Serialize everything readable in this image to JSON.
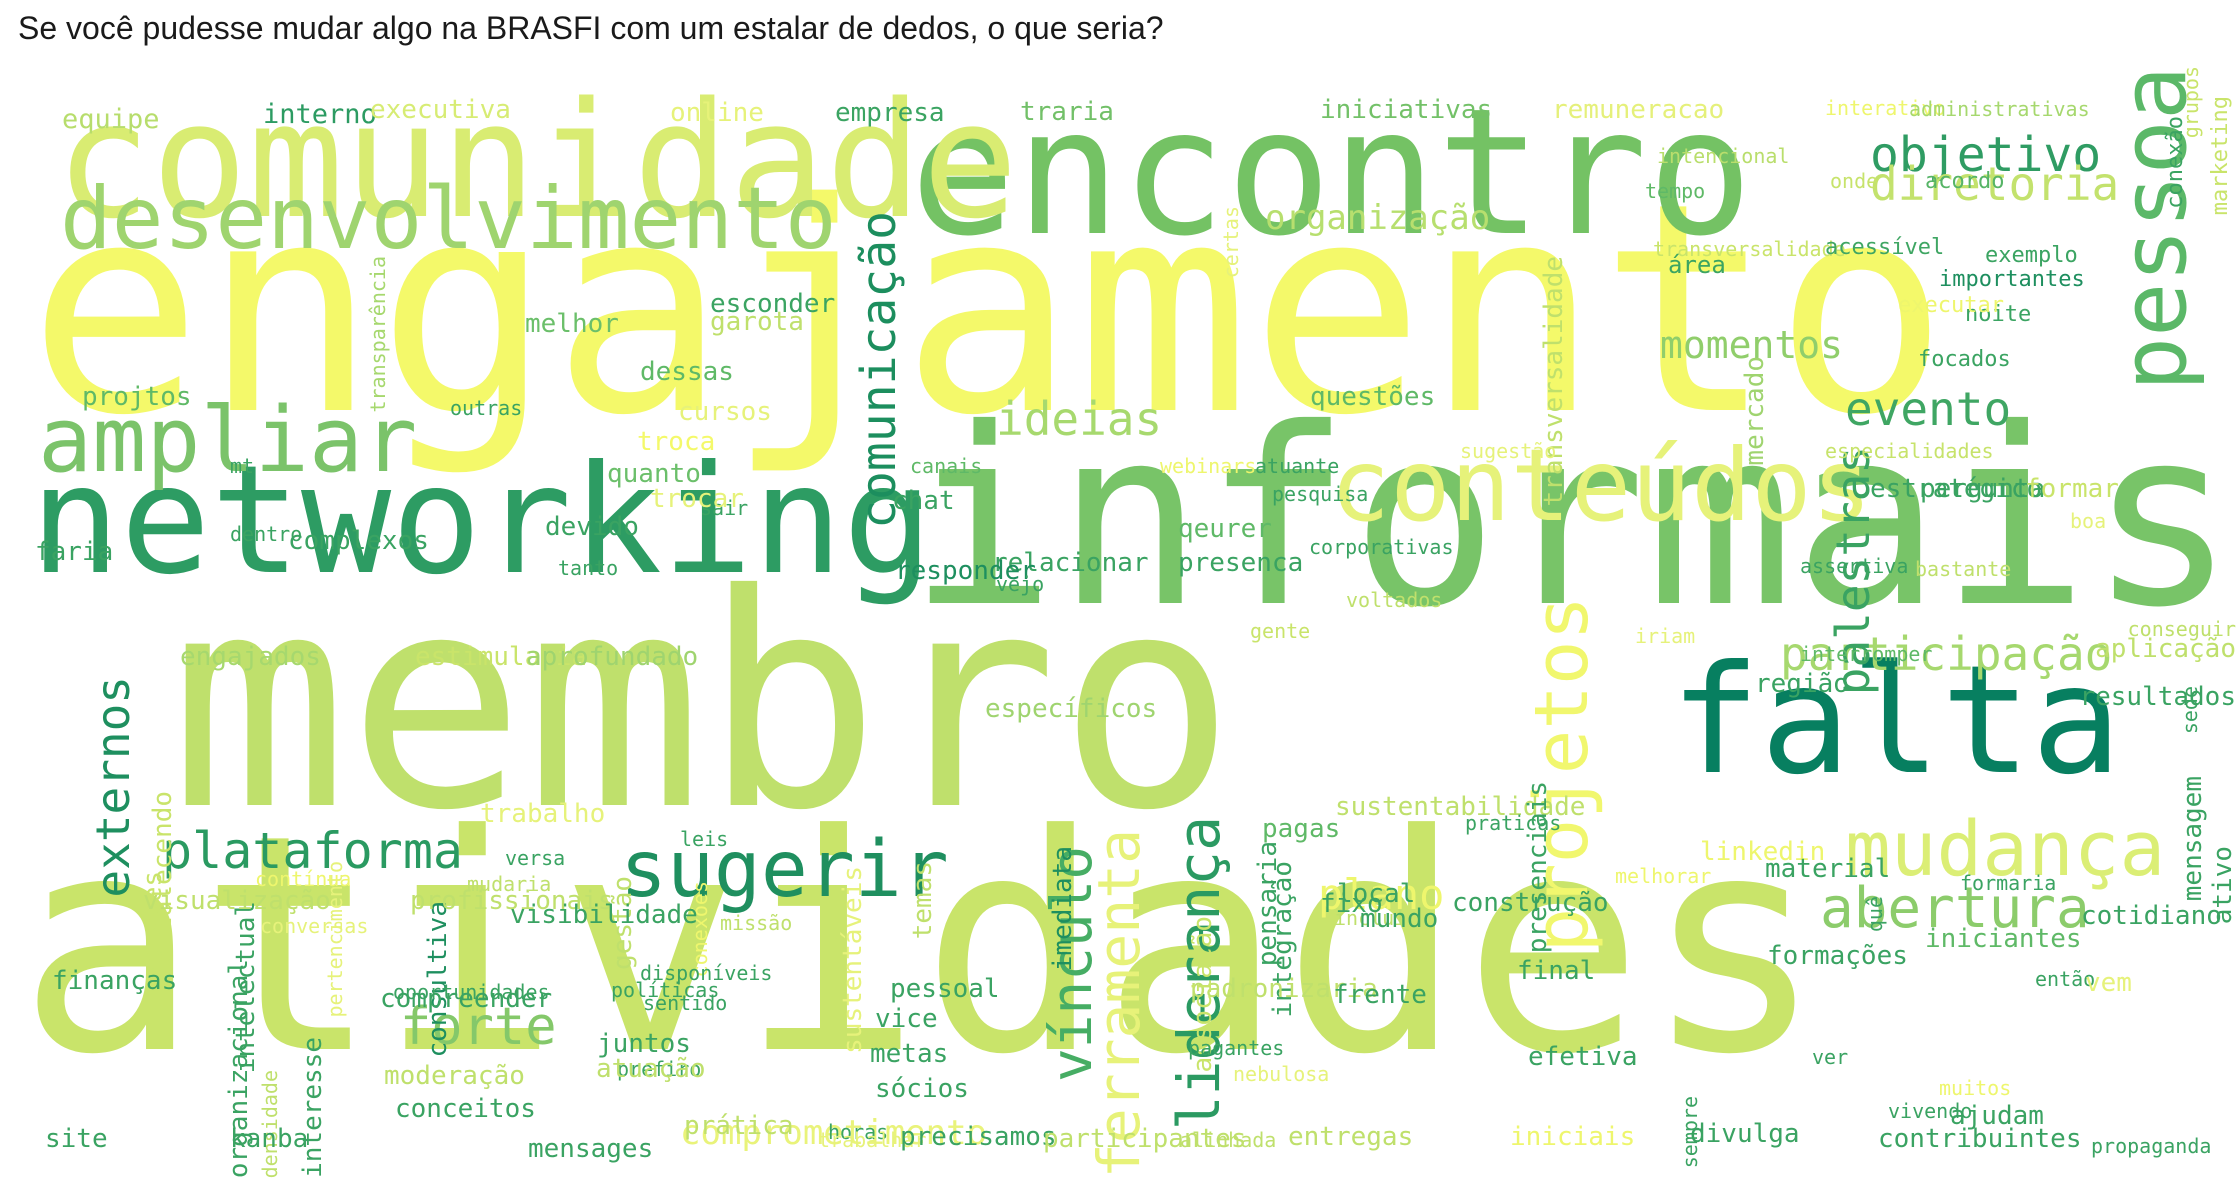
{
  "title": "Se você pudesse mudar algo na BRASFI com um estalar de dedos, o que seria?",
  "palette": {
    "bg": "#ffffff",
    "colors": [
      "#f7fa6a",
      "#e6f27a",
      "#c7e36b",
      "#9fd46f",
      "#6bbf6a",
      "#3aa360",
      "#178a5b",
      "#047c5e"
    ]
  },
  "words": [
    {
      "t": "engajamento",
      "c": "#f4f96a"
    },
    {
      "t": "atividades",
      "c": "#c9e46a"
    },
    {
      "t": "membro",
      "c": "#bfe06c"
    },
    {
      "t": "informais",
      "c": "#78c468"
    },
    {
      "t": "encontro",
      "c": "#74c264"
    },
    {
      "t": "comunidade",
      "c": "#d9ec72"
    },
    {
      "t": "networking",
      "c": "#2d9c63"
    },
    {
      "t": "falta",
      "c": "#077f60"
    },
    {
      "t": "conteúdos",
      "c": "#e6f27a"
    },
    {
      "t": "desenvolvimento",
      "c": "#9fd46f"
    },
    {
      "t": "pessoa",
      "c": "#5bb868"
    },
    {
      "t": "ampliar",
      "c": "#7bc36a"
    },
    {
      "t": "sugerir",
      "c": "#1f8f5f"
    },
    {
      "t": "mudança",
      "c": "#dbee75"
    },
    {
      "t": "projetos",
      "c": "#f1f76e"
    },
    {
      "t": "plataforma",
      "c": "#2a9a61"
    },
    {
      "t": "abertura",
      "c": "#8ccc6b"
    },
    {
      "t": "participação",
      "c": "#a6d86e"
    },
    {
      "t": "forte",
      "c": "#84c86a"
    },
    {
      "t": "objetivo",
      "c": "#2f9c63"
    },
    {
      "t": "diretoria",
      "c": "#c3e26d"
    },
    {
      "t": "ferramenta",
      "c": "#e7f279"
    },
    {
      "t": "liderança",
      "c": "#2b9a62"
    },
    {
      "t": "vínculo",
      "c": "#46ad64"
    },
    {
      "t": "palestras",
      "c": "#3aa362"
    },
    {
      "t": "evento",
      "c": "#3fa663"
    },
    {
      "t": "ideias",
      "c": "#a7d96e"
    },
    {
      "t": "plano",
      "c": "#eef66d"
    },
    {
      "t": "externos",
      "c": "#1e8f5f"
    },
    {
      "t": "comunicação",
      "c": "#1c8e5e"
    },
    {
      "t": "organização",
      "c": "#b7df6e"
    },
    {
      "t": "momentos",
      "c": "#90ce6b"
    },
    {
      "t": "comprometimento",
      "c": "#e9f37a"
    },
    {
      "t": "equipe",
      "c": "#b7dd6c"
    },
    {
      "t": "interno",
      "c": "#2c9b62"
    },
    {
      "t": "executiva",
      "c": "#d7ec74"
    },
    {
      "t": "online",
      "c": "#e6f279"
    },
    {
      "t": "empresa",
      "c": "#3ba462"
    },
    {
      "t": "traria",
      "c": "#72c068"
    },
    {
      "t": "iniciativas",
      "c": "#73c168"
    },
    {
      "t": "remuneracao",
      "c": "#e5f07a"
    },
    {
      "t": "interativo",
      "c": "#eef66d"
    },
    {
      "t": "administrativas",
      "c": "#a6d86e"
    },
    {
      "t": "intencional",
      "c": "#b9de6c"
    },
    {
      "t": "onde",
      "c": "#c7e36b"
    },
    {
      "t": "tempo",
      "c": "#5fb967"
    },
    {
      "t": "acordo",
      "c": "#56b466"
    },
    {
      "t": "grupos",
      "c": "#c9e46a"
    },
    {
      "t": "pergunta",
      "c": "#3ba462"
    },
    {
      "t": "transversalidade",
      "c": "#c9e46a"
    },
    {
      "t": "acessível",
      "c": "#3fa663"
    },
    {
      "t": "exemplo",
      "c": "#3ba462"
    },
    {
      "t": "importantes",
      "c": "#1e8f5f"
    },
    {
      "t": "noite",
      "c": "#3ba462"
    },
    {
      "t": "área",
      "c": "#3ba462"
    },
    {
      "t": "executar",
      "c": "#eef66d"
    },
    {
      "t": "focados",
      "c": "#3ba462"
    },
    {
      "t": "conexão",
      "c": "#3ba462"
    },
    {
      "t": "marketing",
      "c": "#c9e46a"
    },
    {
      "t": "mercado",
      "c": "#9fd46f"
    },
    {
      "t": "transversalidade",
      "c": "#bfe06c"
    },
    {
      "t": "especialidades",
      "c": "#c7e36b"
    },
    {
      "t": "sugestão",
      "c": "#e6f27a"
    },
    {
      "t": "estratégico",
      "c": "#3aa362"
    },
    {
      "t": "formar",
      "c": "#c9e46a"
    },
    {
      "t": "boa",
      "c": "#e6f27a"
    },
    {
      "t": "melhor",
      "c": "#6bbf6a"
    },
    {
      "t": "garota",
      "c": "#bfe06c"
    },
    {
      "t": "esconder",
      "c": "#3ba462"
    },
    {
      "t": "dessas",
      "c": "#5fb967"
    },
    {
      "t": "cursos",
      "c": "#e6f27a"
    },
    {
      "t": "troca",
      "c": "#f4f96a"
    },
    {
      "t": "quanto",
      "c": "#6bbf6a"
    },
    {
      "t": "sair",
      "c": "#3aa362"
    },
    {
      "t": "devido",
      "c": "#3aa362"
    },
    {
      "t": "projtos",
      "c": "#5fb967"
    },
    {
      "t": "outras",
      "c": "#3aa362"
    },
    {
      "t": "canais",
      "c": "#5fb967"
    },
    {
      "t": "webinars",
      "c": "#eef66d"
    },
    {
      "t": "atuante",
      "c": "#3aa362"
    },
    {
      "t": "questões",
      "c": "#5fb967"
    },
    {
      "t": "qeurer",
      "c": "#5fb967"
    },
    {
      "t": "relacionar",
      "c": "#3aa362"
    },
    {
      "t": "presenca",
      "c": "#3aa362"
    },
    {
      "t": "trocar",
      "c": "#e6f27a"
    },
    {
      "t": "chat",
      "c": "#3aa362"
    },
    {
      "t": "responder",
      "c": "#1e8f5f"
    },
    {
      "t": "vejo",
      "c": "#3aa362"
    },
    {
      "t": "complexos",
      "c": "#3aa362"
    },
    {
      "t": "faria",
      "c": "#3aa362"
    },
    {
      "t": "dentro",
      "c": "#3aa362"
    },
    {
      "t": "mt",
      "c": "#3aa362"
    },
    {
      "t": "transparência",
      "c": "#a6d86e"
    },
    {
      "t": "tanto",
      "c": "#3aa362"
    },
    {
      "t": "engajados",
      "c": "#a6d86e"
    },
    {
      "t": "estimularia",
      "c": "#c9e46a"
    },
    {
      "t": "aprofundado",
      "c": "#9fd46f"
    },
    {
      "t": "certas",
      "c": "#e6f27a"
    },
    {
      "t": "fortalecendo",
      "c": "#c9e46a"
    },
    {
      "t": "versões",
      "c": "#c9e46a"
    },
    {
      "t": "intelectual",
      "c": "#3aa362"
    },
    {
      "t": "pertencimento",
      "c": "#e6f27a"
    },
    {
      "t": "consultiva",
      "c": "#1e8f5f"
    },
    {
      "t": "trabalho",
      "c": "#e6f27a"
    },
    {
      "t": "gestão",
      "c": "#bfe06c"
    },
    {
      "t": "conexões",
      "c": "#eef66d"
    },
    {
      "t": "sustentáveis",
      "c": "#e6f27a"
    },
    {
      "t": "temas",
      "c": "#bfe06c"
    },
    {
      "t": "imediata",
      "c": "#1e8f5f"
    },
    {
      "t": "específicos",
      "c": "#9fd46f"
    },
    {
      "t": "integração",
      "c": "#3aa362"
    },
    {
      "t": "pensaria",
      "c": "#3aa362"
    },
    {
      "t": "sustentabilidade",
      "c": "#bfe06c"
    },
    {
      "t": "pagas",
      "c": "#5fb967"
    },
    {
      "t": "presenciais",
      "c": "#3aa362"
    },
    {
      "t": "assertiva",
      "c": "#3aa362"
    },
    {
      "t": "bastante",
      "c": "#bfe06c"
    },
    {
      "t": "sede",
      "c": "#3aa362"
    },
    {
      "t": "aplicação",
      "c": "#bfe06c"
    },
    {
      "t": "conseguir",
      "c": "#bfe06c"
    },
    {
      "t": "resultados",
      "c": "#3aa362"
    },
    {
      "t": "iriam",
      "c": "#e6f27a"
    },
    {
      "t": "gente",
      "c": "#c9e46a"
    },
    {
      "t": "interromper",
      "c": "#5fb967"
    },
    {
      "t": "região",
      "c": "#3aa362"
    },
    {
      "t": "mensagem",
      "c": "#3aa362"
    },
    {
      "t": "ativo",
      "c": "#3aa362"
    },
    {
      "t": "leis",
      "c": "#3aa362"
    },
    {
      "t": "versa",
      "c": "#3aa362"
    },
    {
      "t": "contínua",
      "c": "#eef66d"
    },
    {
      "t": "mudaria",
      "c": "#bfe06c"
    },
    {
      "t": "visualização",
      "c": "#bfe06c"
    },
    {
      "t": "profissionais",
      "c": "#bfe06c"
    },
    {
      "t": "visibilidade",
      "c": "#3aa362"
    },
    {
      "t": "missão",
      "c": "#bfe06c"
    },
    {
      "t": "conversas",
      "c": "#e6f27a"
    },
    {
      "t": "local",
      "c": "#3aa362"
    },
    {
      "t": "construção",
      "c": "#3aa362"
    },
    {
      "t": "praticas",
      "c": "#3aa362"
    },
    {
      "t": "linkedin",
      "c": "#eef66d"
    },
    {
      "t": "material",
      "c": "#3aa362"
    },
    {
      "t": "melhorar",
      "c": "#eef66d"
    },
    {
      "t": "quê",
      "c": "#3aa362"
    },
    {
      "t": "formações",
      "c": "#3aa362"
    },
    {
      "t": "formaria",
      "c": "#3aa362"
    },
    {
      "t": "iniciantes",
      "c": "#5fb967"
    },
    {
      "t": "incluir",
      "c": "#bfe06c"
    },
    {
      "t": "fixo",
      "c": "#3aa362"
    },
    {
      "t": "mundo",
      "c": "#3aa362"
    },
    {
      "t": "padronizaria",
      "c": "#bfe06c"
    },
    {
      "t": "associação",
      "c": "#c9e46a"
    },
    {
      "t": "cotidiano",
      "c": "#3aa362"
    },
    {
      "t": "organizacional",
      "c": "#3aa362"
    },
    {
      "t": "densidade",
      "c": "#bfe06c"
    },
    {
      "t": "interesse",
      "c": "#3aa362"
    },
    {
      "t": "compreender",
      "c": "#3aa362"
    },
    {
      "t": "oportunidades",
      "c": "#3aa362"
    },
    {
      "t": "finanças",
      "c": "#3aa362"
    },
    {
      "t": "disponíveis",
      "c": "#3aa362"
    },
    {
      "t": "políticas",
      "c": "#3aa362"
    },
    {
      "t": "sentido",
      "c": "#3aa362"
    },
    {
      "t": "final",
      "c": "#3aa362"
    },
    {
      "t": "pessoal",
      "c": "#3aa362"
    },
    {
      "t": "vice",
      "c": "#3aa362"
    },
    {
      "t": "metas",
      "c": "#3aa362"
    },
    {
      "t": "sócios",
      "c": "#3aa362"
    },
    {
      "t": "juntos",
      "c": "#3aa362"
    },
    {
      "t": "prefiro",
      "c": "#3aa362"
    },
    {
      "t": "atuação",
      "c": "#bfe06c"
    },
    {
      "t": "frente",
      "c": "#3aa362"
    },
    {
      "t": "efetiva",
      "c": "#3aa362"
    },
    {
      "t": "pagantes",
      "c": "#3aa362"
    },
    {
      "t": "nebulosa",
      "c": "#e6f27a"
    },
    {
      "t": "ver",
      "c": "#3aa362"
    },
    {
      "t": "então",
      "c": "#3aa362"
    },
    {
      "t": "vem",
      "c": "#e6f27a"
    },
    {
      "t": "muitos",
      "c": "#eef66d"
    },
    {
      "t": "ajudam",
      "c": "#3aa362"
    },
    {
      "t": "vivendo",
      "c": "#3aa362"
    },
    {
      "t": "sempre",
      "c": "#3aa362"
    },
    {
      "t": "moderação",
      "c": "#bfe06c"
    },
    {
      "t": "conceitos",
      "c": "#3aa362"
    },
    {
      "t": "prática",
      "c": "#bfe06c"
    },
    {
      "t": "horas",
      "c": "#3aa362"
    },
    {
      "t": "trabalhar",
      "c": "#e6f27a"
    },
    {
      "t": "site",
      "c": "#3aa362"
    },
    {
      "t": "kanba",
      "c": "#3aa362"
    },
    {
      "t": "mensages",
      "c": "#3aa362"
    },
    {
      "t": "precisamos",
      "c": "#3aa362"
    },
    {
      "t": "participantes",
      "c": "#bfe06c"
    },
    {
      "t": "alinhada",
      "c": "#bfe06c"
    },
    {
      "t": "entregas",
      "c": "#bfe06c"
    },
    {
      "t": "iniciais",
      "c": "#eef66d"
    },
    {
      "t": "divulga",
      "c": "#3aa362"
    },
    {
      "t": "contribuintes",
      "c": "#3aa362"
    },
    {
      "t": "propaganda",
      "c": "#3aa362"
    },
    {
      "t": "pesquisa",
      "c": "#3aa362"
    },
    {
      "t": "corporativas",
      "c": "#3aa362"
    },
    {
      "t": "voltados",
      "c": "#bfe06c"
    }
  ]
}
